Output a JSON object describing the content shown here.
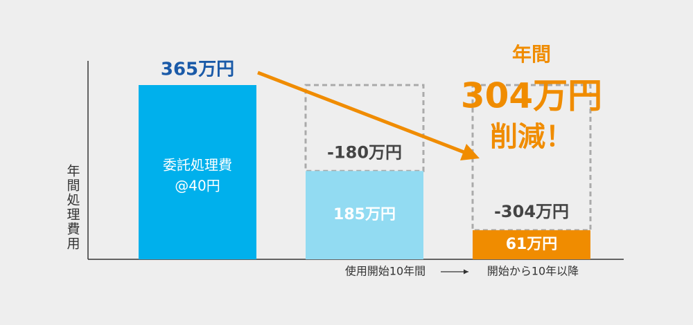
{
  "chart_data": {
    "type": "bar",
    "y_label": "年間処理費用",
    "categories": [
      null,
      "使用開始10年間",
      "開始から10年以降"
    ],
    "series": [
      {
        "values": [
          365,
          185,
          61
        ],
        "value_labels": [
          "365万円",
          "185万円",
          "61万円"
        ],
        "colors": [
          "#00b0ec",
          "#92dbf2",
          "#f08c00"
        ]
      }
    ],
    "bar_note": [
      "委託処理費",
      "@40円"
    ],
    "reductions": {
      "values": [
        null,
        -180,
        -304
      ],
      "value_labels": [
        null,
        "-180万円",
        "-304万円"
      ]
    },
    "annotation": [
      "年間",
      "304万円",
      "削減！"
    ],
    "annotation_color": "#f08c00",
    "arrow_color": "#f08c00"
  }
}
